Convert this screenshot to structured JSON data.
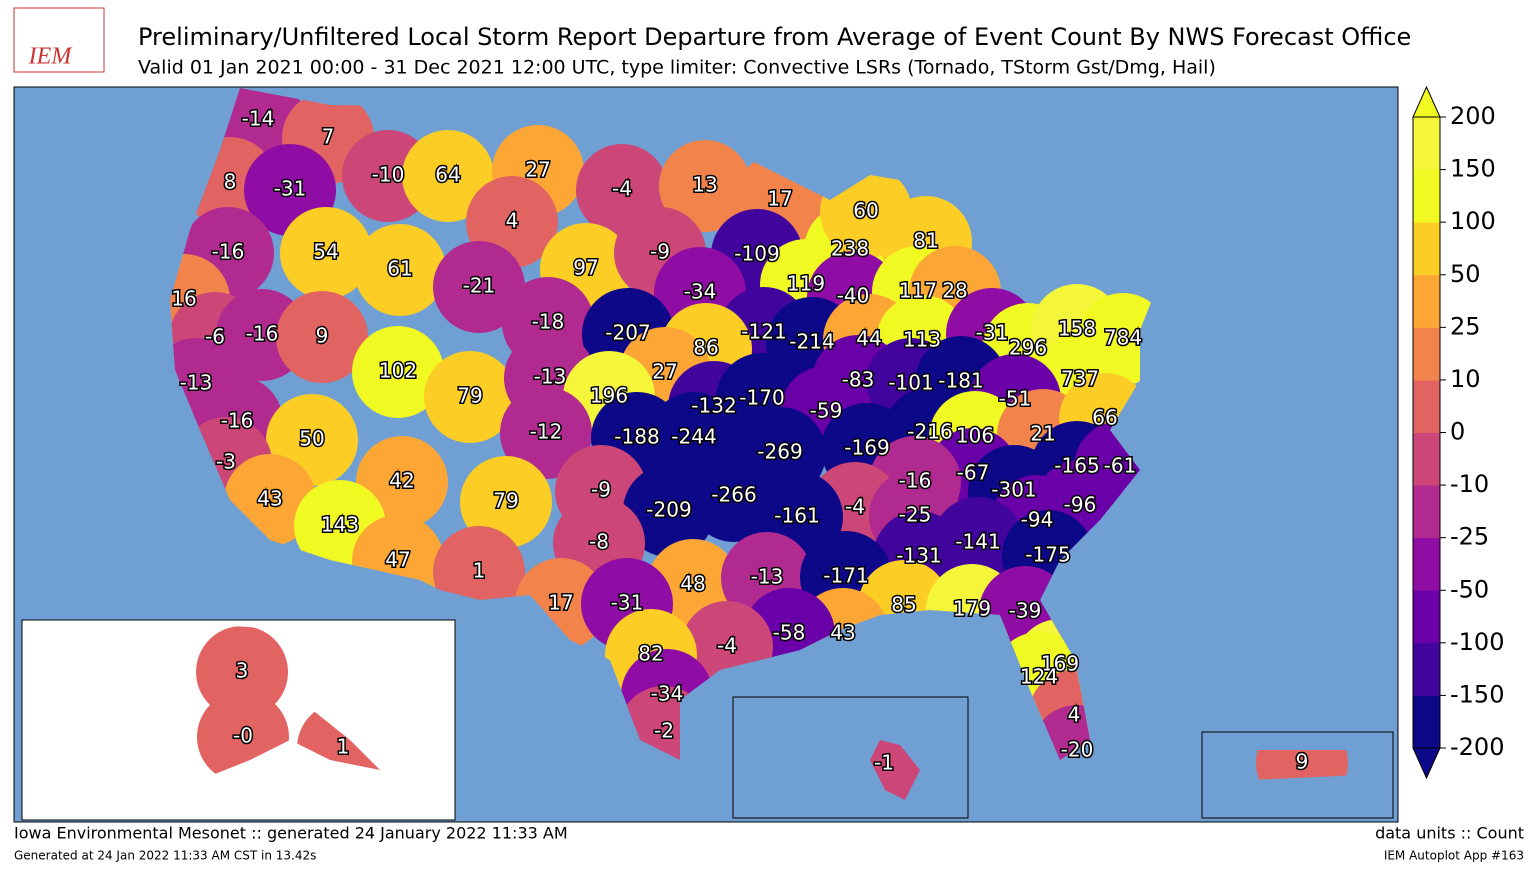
{
  "logo": "IEM",
  "title": "Preliminary/Unfiltered Local Storm Report Departure from Average of Event Count By NWS Forecast Office",
  "subtitle": "Valid 01 Jan 2021 00:00 - 31 Dec 2021 12:00 UTC, type limiter: Convective LSRs (Tornado, TStorm Gst/Dmg, Hail)",
  "footer_left": "Iowa Environmental Mesonet :: generated 24 January 2022 11:33 AM",
  "footer_left_small": "Generated at 24 Jan 2022 11:33 AM CST in 13.42s",
  "footer_right": "data units :: Count",
  "footer_right_small": "IEM Autoplot App #163",
  "colorbar": {
    "ticks": [
      200,
      150,
      100,
      50,
      25,
      10,
      0,
      -10,
      -25,
      -50,
      -100,
      -150,
      -200
    ],
    "colors": [
      "#0d0887",
      "#41049d",
      "#6a00a8",
      "#8f0da4",
      "#b12a90",
      "#cc4778",
      "#e16462",
      "#f2844b",
      "#fca636",
      "#fcce25",
      "#f0f921",
      "#f5f53a"
    ],
    "under": "#0d0887",
    "over": "#f0f921"
  },
  "offices": [
    "-14",
    "7",
    "8",
    "-31",
    "-10",
    "64",
    "27",
    "-4",
    "13",
    "17",
    "4",
    "-16",
    "54",
    "61",
    "97",
    "-9",
    "-109",
    "238",
    "60",
    "81",
    "-21",
    "119",
    "-40",
    "117",
    "28",
    "-34",
    "16",
    "-6",
    "-16",
    "9",
    "-18",
    "-207",
    "-121",
    "-214",
    "44",
    "113",
    "-31",
    "86",
    "296",
    "158",
    "784",
    "102",
    "79",
    "-13",
    "27",
    "-13",
    "196",
    "-132",
    "-170",
    "-83",
    "-101",
    "-181",
    "737",
    "-51",
    "-16",
    "50",
    "-12",
    "-188",
    "-244",
    "-59",
    "-216",
    "106",
    "21",
    "66",
    "-269",
    "-169",
    "-165",
    "-61",
    "-3",
    "42",
    "79",
    "-9",
    "-266",
    "-67",
    "-301",
    "-16",
    "-4",
    "43",
    "-209",
    "-161",
    "-25",
    "-94",
    "-96",
    "143",
    "-8",
    "-141",
    "-131",
    "-175",
    "47",
    "1",
    "48",
    "-13",
    "-171",
    "17",
    "-31",
    "85",
    "179",
    "-39",
    "43",
    "-58",
    "-4",
    "82",
    "169",
    "124",
    "-34",
    "4",
    "-2",
    "-20",
    "3",
    "-0",
    "1",
    "-1",
    "9"
  ]
}
